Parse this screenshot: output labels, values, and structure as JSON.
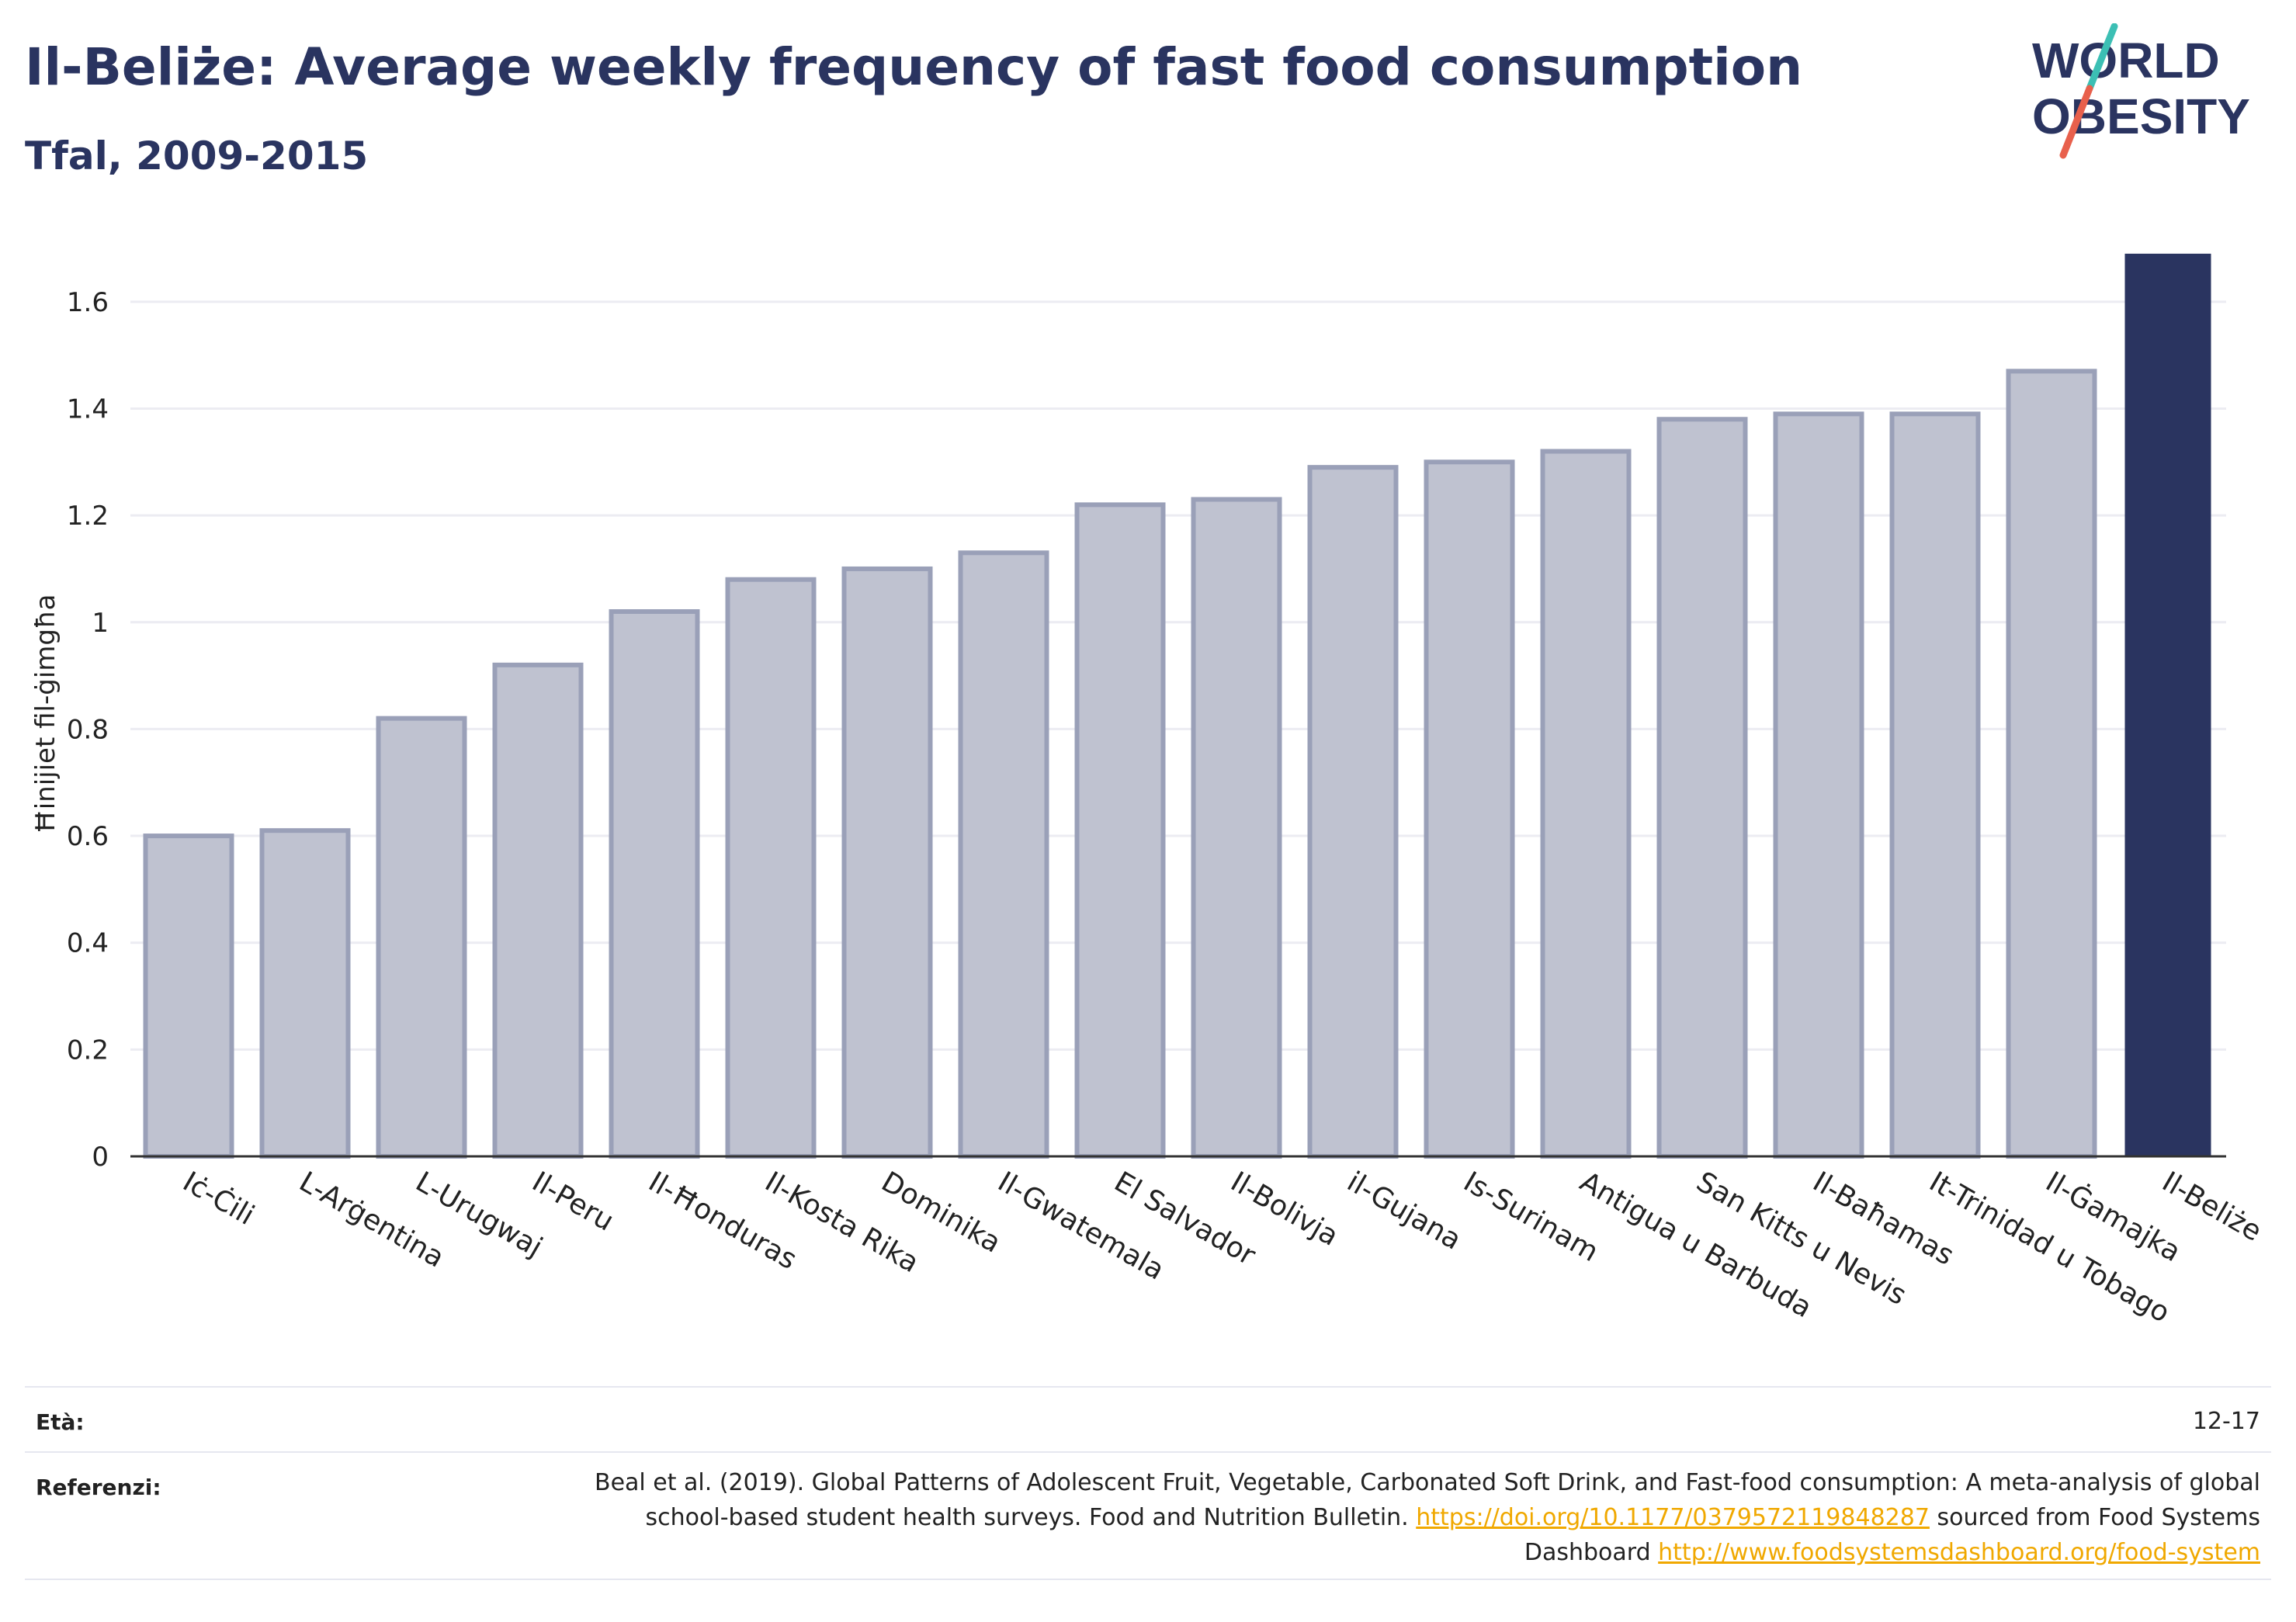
{
  "header": {
    "title": "Il-Beliże: Average weekly frequency of fast food consumption",
    "subtitle": "Tfal, 2009-2015"
  },
  "logo": {
    "line1": "WORLD",
    "line2": "OBESITY",
    "colors": {
      "text": "#2a3460",
      "slash_teal": "#3cbfb4",
      "slash_red": "#e8604c"
    }
  },
  "chart_data": {
    "type": "bar",
    "ylabel": "Ħinijiet fil-ġimgħa",
    "ylim": [
      0,
      1.7
    ],
    "yticks": [
      0,
      0.2,
      0.4,
      0.6,
      0.8,
      1,
      1.2,
      1.4,
      1.6
    ],
    "ytick_labels": [
      "0",
      "0.2",
      "0.4",
      "0.6",
      "0.8",
      "1",
      "1.2",
      "1.4",
      "1.6"
    ],
    "grid": true,
    "categories": [
      "Iċ-Ċili",
      "L-Arġentina",
      "L-Urugwaj",
      "Il-Peru",
      "Il-Ħonduras",
      "Il-Kosta Rika",
      "Dominika",
      "Il-Gwatemala",
      "El Salvador",
      "Il-Bolivja",
      "il-Gujana",
      "Is-Surinam",
      "Antigua u Barbuda",
      "San Kitts u Nevis",
      "Il-Baħamas",
      "It-Trinidad u Tobago",
      "Il-Ġamajka",
      "Il-Beliże"
    ],
    "values": [
      0.6,
      0.61,
      0.82,
      0.92,
      1.02,
      1.08,
      1.1,
      1.13,
      1.22,
      1.23,
      1.29,
      1.3,
      1.32,
      1.38,
      1.39,
      1.39,
      1.47,
      1.69
    ],
    "highlight": "Il-Beliże",
    "colors": {
      "highlight": "#2a3460",
      "other_fill": "#bfc2d0",
      "other_stroke": "#9aa0b8",
      "grid": "#ececf2",
      "axis": "#333333"
    }
  },
  "footer": {
    "age_label": "Età:",
    "age_value": "12-17",
    "ref_label": "Referenzi:",
    "ref_text_1": "Beal et al. (2019). Global Patterns of Adolescent Fruit, Vegetable, Carbonated Soft Drink, and Fast-food consumption: A meta-analysis of global school-based student health surveys. Food and Nutrition Bulletin. ",
    "ref_link_1": "https://doi.org/10.1177/0379572119848287",
    "ref_text_2": " sourced from Food Systems Dashboard ",
    "ref_link_2": "http://www.foodsystemsdashboard.org/food-system"
  }
}
